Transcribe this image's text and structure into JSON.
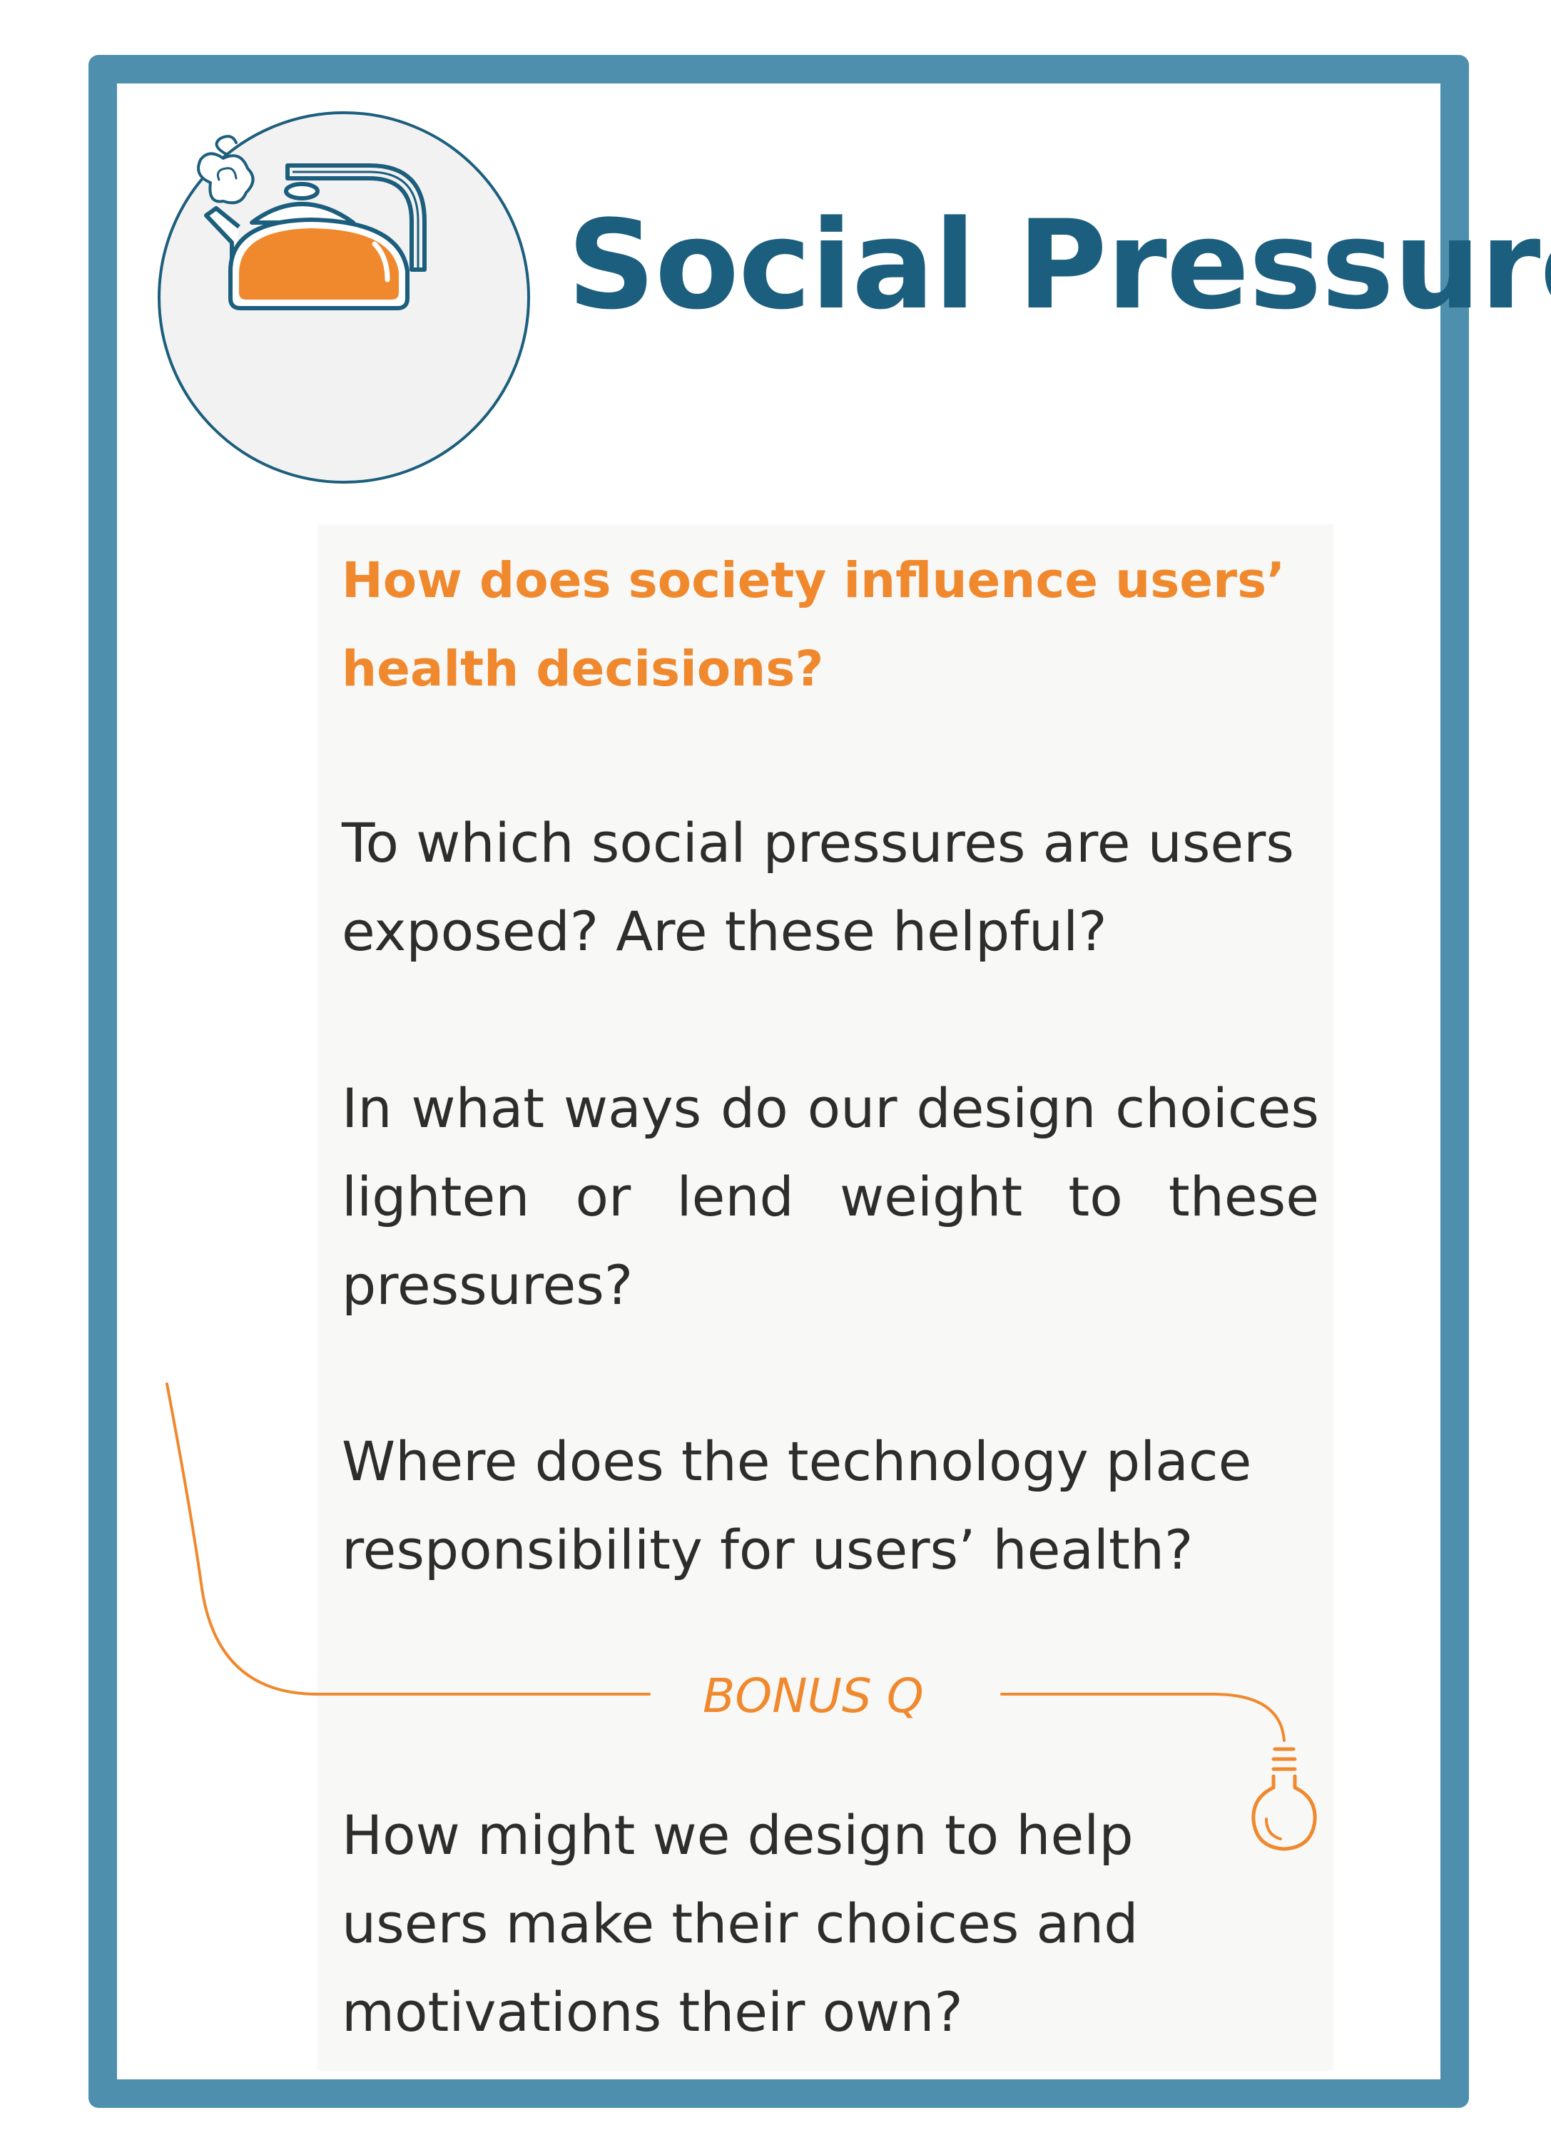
{
  "card": {
    "title": "Social Pressure",
    "icon": "kettle-icon",
    "main_question": "How does society influence users’ health decisions?",
    "questions": [
      "To which social pressures are users exposed? Are these helpful?",
      "In what ways do our design choices lighten or lend weight to these pressures?",
      "Where does the technology place responsibility for users’ health?"
    ],
    "bonus": {
      "label": "BONUS Q",
      "icon": "lightbulb-icon",
      "question": "How might we design to  help users make their choices and motivations their own?"
    }
  },
  "colors": {
    "border": "#4e8fad",
    "title": "#1c5e7d",
    "accent": "#f0892e",
    "body_text": "#2d2d2d",
    "icon_background": "#f2f2f2"
  }
}
